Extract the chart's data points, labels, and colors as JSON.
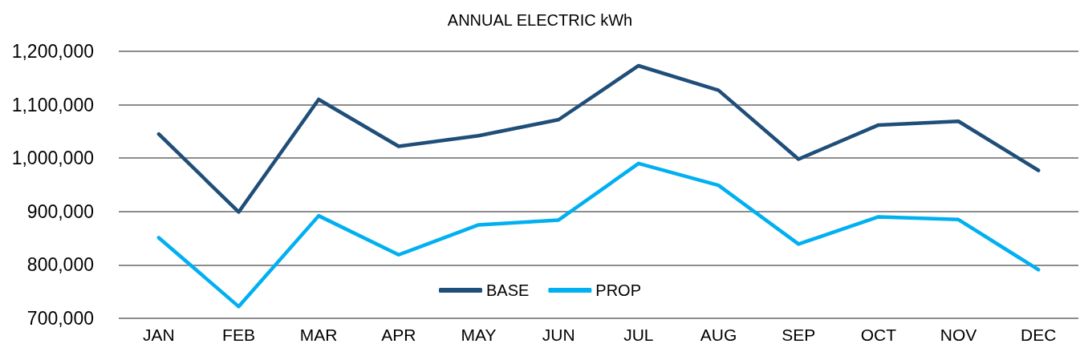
{
  "chart_data": {
    "type": "line",
    "title": "ANNUAL ELECTRIC kWh",
    "categories": [
      "JAN",
      "FEB",
      "MAR",
      "APR",
      "MAY",
      "JUN",
      "JUL",
      "AUG",
      "SEP",
      "OCT",
      "NOV",
      "DEC"
    ],
    "series": [
      {
        "name": "BASE",
        "color": "#1f4e79",
        "values": [
          1045000,
          899000,
          1110000,
          1022000,
          1042000,
          1072000,
          1173000,
          1127000,
          998000,
          1062000,
          1069000,
          977000
        ]
      },
      {
        "name": "PROP",
        "color": "#00b0f0",
        "values": [
          851000,
          722000,
          892000,
          819000,
          875000,
          884000,
          990000,
          949000,
          839000,
          890000,
          885000,
          791000
        ]
      }
    ],
    "ylim": [
      700000,
      1200000
    ],
    "yticks": [
      {
        "value": 700000,
        "label": "700,000"
      },
      {
        "value": 800000,
        "label": "800,000"
      },
      {
        "value": 900000,
        "label": "900,000"
      },
      {
        "value": 1000000,
        "label": "1,000,000"
      },
      {
        "value": 1100000,
        "label": "1,100,000"
      },
      {
        "value": 1200000,
        "label": "1,200,000"
      }
    ],
    "grid": "y",
    "legend": "bottom"
  }
}
